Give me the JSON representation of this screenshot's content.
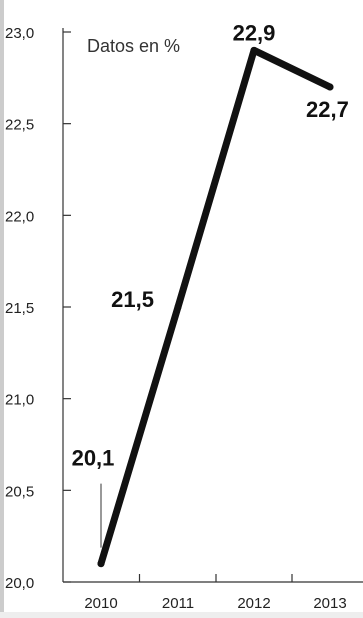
{
  "chart_data": {
    "type": "line",
    "title": "",
    "xlabel": "",
    "ylabel": "",
    "unit_label": "Datos en %",
    "categories": [
      "2010",
      "2011",
      "2012",
      "2013"
    ],
    "series": [
      {
        "values": [
          20.1,
          21.5,
          22.9,
          22.7
        ]
      }
    ],
    "data_labels": [
      "20,1",
      "21,5",
      "22,9",
      "22,7"
    ],
    "yticks": [
      20.0,
      20.5,
      21.0,
      21.5,
      22.0,
      22.5,
      23.0
    ],
    "ytick_labels": [
      "20,0",
      "20,5",
      "21,0",
      "21,5",
      "22,0",
      "22,5",
      "23,0"
    ],
    "ylim": [
      20.0,
      23.0
    ],
    "grid": false,
    "legend": "none",
    "colors": {
      "line": "#111111",
      "axis": "#333333",
      "background": "#ffffff",
      "frame": "#cccccc"
    }
  }
}
